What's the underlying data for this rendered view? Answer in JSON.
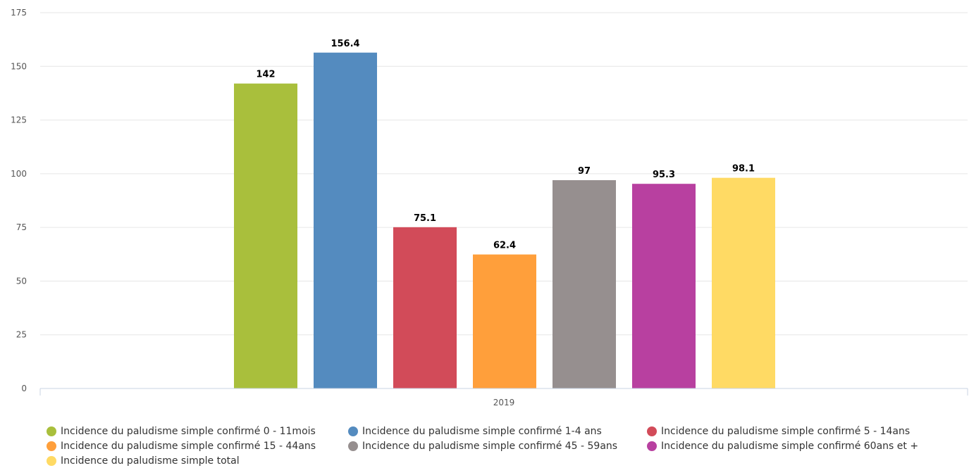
{
  "chart_data": {
    "type": "bar",
    "categories": [
      "2019"
    ],
    "ylim": [
      0,
      175
    ],
    "yticks": [
      0,
      25,
      50,
      75,
      100,
      125,
      150,
      175
    ],
    "grid": true,
    "legend_position": "bottom",
    "series": [
      {
        "name": "Incidence du paludisme simple confirmé 0 - 11mois",
        "value": 142,
        "label": "142",
        "color": "#A9BF3C"
      },
      {
        "name": "Incidence du paludisme simple confirmé 1-4 ans",
        "value": 156.4,
        "label": "156.4",
        "color": "#548BBF"
      },
      {
        "name": "Incidence du paludisme simple confirmé 5 - 14ans",
        "value": 75.1,
        "label": "75.1",
        "color": "#D24B59"
      },
      {
        "name": "Incidence du paludisme simple confirmé 15 - 44ans",
        "value": 62.4,
        "label": "62.4",
        "color": "#FF9F3B"
      },
      {
        "name": "Incidence du paludisme simple confirmé 45 - 59ans",
        "value": 97,
        "label": "97",
        "color": "#968F8F"
      },
      {
        "name": "Incidence du paludisme simple confirmé 60ans et +",
        "value": 95.3,
        "label": "95.3",
        "color": "#B840A0"
      },
      {
        "name": "Incidence du paludisme simple total",
        "value": 98.1,
        "label": "98.1",
        "color": "#FFDA64"
      }
    ]
  }
}
